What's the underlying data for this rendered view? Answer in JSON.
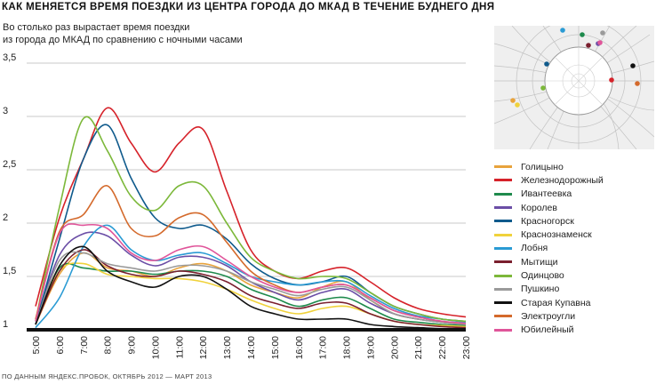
{
  "title": "КАК МЕНЯЕТСЯ ВРЕМЯ ПОЕЗДКИ ИЗ ЦЕНТРА ГОРОДА ДО МКАД В ТЕЧЕНИЕ БУДНЕГО ДНЯ",
  "subtitle_line1": "Во столько раз вырастает время поездки",
  "subtitle_line2": "из города до МКАД по сравнению с ночными часами",
  "source": "ПО ДАННЫМ ЯНДЕКС.ПРОБОК, ОКТЯБРЬ 2012 — МАРТ 2013",
  "chart_data": {
    "type": "line",
    "title": "КАК МЕНЯЕТСЯ ВРЕМЯ ПОЕЗДКИ ИЗ ЦЕНТРА ГОРОДА ДО МКАД В ТЕЧЕНИЕ БУДНЕГО ДНЯ",
    "ylabel": "Во столько раз вырастает время поездки из города до МКАД по сравнению с ночными часами",
    "xlabel": "",
    "ylim": [
      1,
      3.5
    ],
    "yticks": [
      "1",
      "1,5",
      "2",
      "2,5",
      "3",
      "3,5"
    ],
    "ytick_values": [
      1,
      1.5,
      2,
      2.5,
      3,
      3.5
    ],
    "x": [
      "5:00",
      "6:00",
      "7:00",
      "8:00",
      "9:00",
      "10:00",
      "11:00",
      "12:00",
      "13:00",
      "14:00",
      "15:00",
      "16:00",
      "17:00",
      "18:00",
      "19:00",
      "20:00",
      "21:00",
      "22:00",
      "23:00"
    ],
    "grid": "horizontal",
    "legend_position": "right",
    "series": [
      {
        "name": "Голицыно",
        "color": "#e8a33c",
        "values": [
          1.05,
          1.52,
          1.72,
          1.58,
          1.55,
          1.5,
          1.58,
          1.62,
          1.55,
          1.42,
          1.35,
          1.3,
          1.4,
          1.45,
          1.28,
          1.15,
          1.1,
          1.07,
          1.05
        ]
      },
      {
        "name": "Железнодорожный",
        "color": "#d6222a",
        "values": [
          1.22,
          2.05,
          2.6,
          3.08,
          2.75,
          2.48,
          2.75,
          2.88,
          2.3,
          1.75,
          1.55,
          1.48,
          1.55,
          1.58,
          1.45,
          1.3,
          1.2,
          1.15,
          1.12
        ]
      },
      {
        "name": "Ивантеевка",
        "color": "#1e8a4c",
        "values": [
          1.05,
          1.58,
          1.58,
          1.55,
          1.55,
          1.52,
          1.55,
          1.55,
          1.5,
          1.38,
          1.3,
          1.22,
          1.28,
          1.3,
          1.2,
          1.1,
          1.07,
          1.05,
          1.04
        ]
      },
      {
        "name": "Королев",
        "color": "#6b4ea6",
        "values": [
          1.08,
          1.7,
          1.9,
          1.88,
          1.7,
          1.6,
          1.68,
          1.68,
          1.6,
          1.45,
          1.35,
          1.28,
          1.35,
          1.38,
          1.25,
          1.15,
          1.1,
          1.07,
          1.05
        ]
      },
      {
        "name": "Красногорск",
        "color": "#0f5a8c",
        "values": [
          1.05,
          1.85,
          2.6,
          2.92,
          2.42,
          2.05,
          1.95,
          1.98,
          1.85,
          1.62,
          1.48,
          1.42,
          1.45,
          1.5,
          1.35,
          1.22,
          1.15,
          1.1,
          1.08
        ]
      },
      {
        "name": "Краснознаменск",
        "color": "#f0d23c",
        "values": [
          1.05,
          1.55,
          1.62,
          1.52,
          1.5,
          1.48,
          1.48,
          1.45,
          1.38,
          1.28,
          1.2,
          1.15,
          1.2,
          1.22,
          1.15,
          1.08,
          1.05,
          1.04,
          1.03
        ]
      },
      {
        "name": "Лобня",
        "color": "#2a9bd4",
        "values": [
          1.02,
          1.3,
          1.78,
          1.98,
          1.75,
          1.65,
          1.7,
          1.72,
          1.62,
          1.5,
          1.45,
          1.42,
          1.45,
          1.45,
          1.32,
          1.2,
          1.13,
          1.1,
          1.07
        ]
      },
      {
        "name": "Мытищи",
        "color": "#7a1f2e",
        "values": [
          1.05,
          1.55,
          1.75,
          1.6,
          1.52,
          1.5,
          1.55,
          1.52,
          1.45,
          1.32,
          1.25,
          1.2,
          1.25,
          1.25,
          1.15,
          1.08,
          1.05,
          1.03,
          1.02
        ]
      },
      {
        "name": "Одинцово",
        "color": "#7cb83a",
        "values": [
          1.08,
          2.15,
          2.98,
          2.68,
          2.25,
          2.12,
          2.35,
          2.35,
          2.0,
          1.68,
          1.55,
          1.48,
          1.5,
          1.48,
          1.35,
          1.22,
          1.15,
          1.1,
          1.08
        ]
      },
      {
        "name": "Пушкино",
        "color": "#9a9a9a",
        "values": [
          1.05,
          1.65,
          1.72,
          1.62,
          1.58,
          1.55,
          1.6,
          1.6,
          1.55,
          1.45,
          1.38,
          1.32,
          1.38,
          1.4,
          1.28,
          1.15,
          1.1,
          1.07,
          1.05
        ]
      },
      {
        "name": "Старая Купавна",
        "color": "#111111",
        "values": [
          1.05,
          1.6,
          1.78,
          1.55,
          1.45,
          1.4,
          1.5,
          1.5,
          1.38,
          1.22,
          1.15,
          1.1,
          1.1,
          1.1,
          1.05,
          1.03,
          1.02,
          1.01,
          1.01
        ]
      },
      {
        "name": "Электроугли",
        "color": "#d46a2c",
        "values": [
          1.1,
          1.92,
          2.08,
          2.35,
          1.95,
          1.88,
          2.05,
          2.08,
          1.82,
          1.55,
          1.42,
          1.35,
          1.4,
          1.42,
          1.3,
          1.18,
          1.12,
          1.08,
          1.06
        ]
      },
      {
        "name": "Юбилейный",
        "color": "#e0559a",
        "values": [
          1.08,
          1.9,
          1.98,
          1.95,
          1.72,
          1.65,
          1.75,
          1.78,
          1.65,
          1.5,
          1.4,
          1.35,
          1.4,
          1.42,
          1.3,
          1.18,
          1.12,
          1.08,
          1.06
        ]
      }
    ]
  },
  "map": {
    "dots": [
      {
        "color": "#e8a33c"
      },
      {
        "color": "#d6222a"
      },
      {
        "color": "#1e8a4c"
      },
      {
        "color": "#6b4ea6"
      },
      {
        "color": "#0f5a8c"
      },
      {
        "color": "#f0d23c"
      },
      {
        "color": "#2a9bd4"
      },
      {
        "color": "#7a1f2e"
      },
      {
        "color": "#7cb83a"
      },
      {
        "color": "#9a9a9a"
      },
      {
        "color": "#111111"
      },
      {
        "color": "#d46a2c"
      },
      {
        "color": "#e0559a"
      }
    ]
  }
}
